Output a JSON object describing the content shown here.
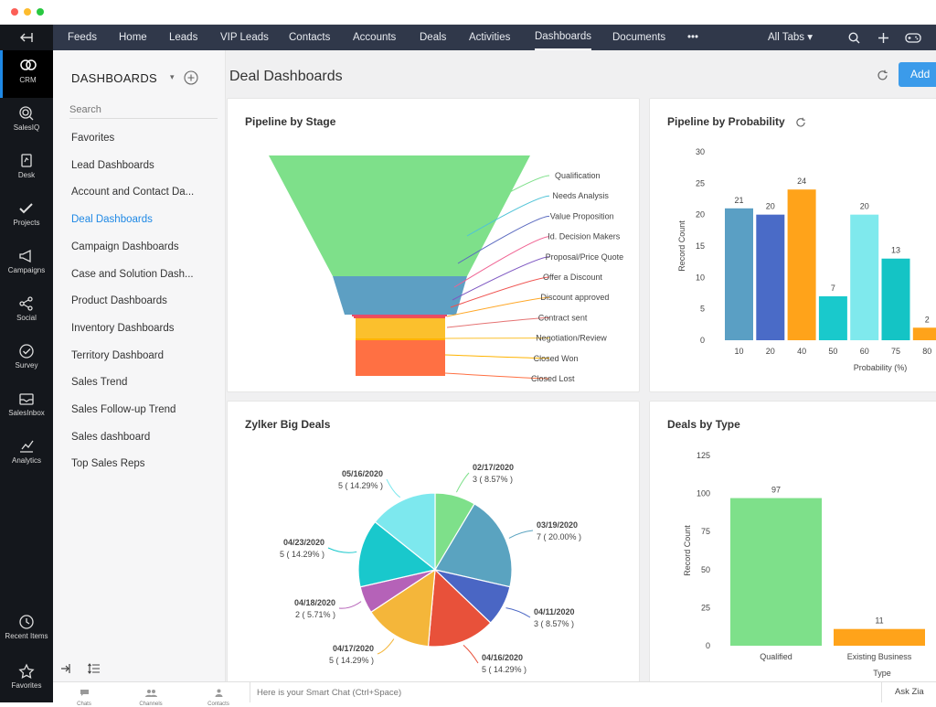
{
  "window": {
    "dots": [
      "#fc5f57",
      "#fdbc2e",
      "#28c840"
    ]
  },
  "topnav": {
    "tabs": [
      "Feeds",
      "Home",
      "Leads",
      "VIP Leads",
      "Contacts",
      "Accounts",
      "Deals",
      "Activities",
      "Dashboards",
      "Documents",
      "•••"
    ],
    "active": "Dashboards",
    "all_tabs": "All Tabs ▾"
  },
  "rail": {
    "items": [
      {
        "label": "CRM",
        "icon": "crm-icon"
      },
      {
        "label": "SalesIQ",
        "icon": "salesiq-icon"
      },
      {
        "label": "Desk",
        "icon": "desk-icon"
      },
      {
        "label": "Projects",
        "icon": "projects-icon"
      },
      {
        "label": "Campaigns",
        "icon": "campaigns-icon"
      },
      {
        "label": "Social",
        "icon": "social-icon"
      },
      {
        "label": "Survey",
        "icon": "survey-icon"
      },
      {
        "label": "SalesInbox",
        "icon": "salesinbox-icon"
      },
      {
        "label": "Analytics",
        "icon": "analytics-icon"
      }
    ],
    "bottom": [
      {
        "label": "Recent Items",
        "icon": "clock-icon"
      },
      {
        "label": "Favorites",
        "icon": "star-icon"
      }
    ]
  },
  "sidebar": {
    "title": "DASHBOARDS",
    "search_placeholder": "Search",
    "items": [
      "Favorites",
      "Lead Dashboards",
      "Account and Contact Da...",
      "Deal Dashboards",
      "Campaign Dashboards",
      "Case and Solution Dash...",
      "Product Dashboards",
      "Inventory Dashboards",
      "Territory Dashboard",
      "Sales Trend",
      "Sales Follow-up Trend",
      "Sales dashboard",
      "Top Sales Reps"
    ],
    "active": "Deal Dashboards"
  },
  "page": {
    "title": "Deal Dashboards",
    "add_button": "Add"
  },
  "bottombar": {
    "items": [
      "Chats",
      "Channels",
      "Contacts"
    ],
    "smart_chat_placeholder": "Here is your Smart Chat (Ctrl+Space)",
    "ask_zia": "Ask Zia"
  },
  "chart_data": [
    {
      "type": "funnel",
      "title": "Pipeline by Stage",
      "categories": [
        "Qualification",
        "Needs Analysis",
        "Value Proposition",
        "Id. Decision Makers",
        "Proposal/Price Quote",
        "Offer a Discount",
        "Discount approved",
        "Contract sent",
        "Negotiation/Review",
        "Closed Won",
        "Closed Lost"
      ],
      "colors": [
        "#7ee08a",
        "#4fc3d7",
        "#5c6bc0",
        "#f06292",
        "#7e57c2",
        "#ef5350",
        "#ffa726",
        "#e57373",
        "#fbc02d",
        "#ffb300",
        "#ff7043"
      ]
    },
    {
      "type": "bar",
      "title": "Pipeline by Probability",
      "xlabel": "Probability (%)",
      "ylabel": "Record Count",
      "categories": [
        "10",
        "20",
        "40",
        "50",
        "60",
        "75",
        "80"
      ],
      "values": [
        21,
        20,
        24,
        7,
        20,
        13,
        2
      ],
      "colors": [
        "#5a9fc4",
        "#4a6bc7",
        "#ffa31a",
        "#19c9cc",
        "#7fe9ed",
        "#14c4c5",
        "#ffa31a"
      ],
      "ylim": [
        0,
        30
      ],
      "yticks": [
        0,
        5,
        10,
        15,
        20,
        25,
        30
      ]
    },
    {
      "type": "pie",
      "title": "Zylker Big Deals",
      "slices": [
        {
          "date": "02/17/2020",
          "label": "3 ( 8.57% )",
          "value": 8.57,
          "color": "#7ee08a"
        },
        {
          "date": "03/19/2020",
          "label": "7 ( 20.00% )",
          "value": 20.0,
          "color": "#5aa3c0"
        },
        {
          "date": "04/11/2020",
          "label": "3 ( 8.57% )",
          "value": 8.57,
          "color": "#4a66c4"
        },
        {
          "date": "04/16/2020",
          "label": "5 ( 14.29% )",
          "value": 14.29,
          "color": "#e8513a"
        },
        {
          "date": "04/17/2020",
          "label": "5 ( 14.29% )",
          "value": 14.29,
          "color": "#f4b63a"
        },
        {
          "date": "04/18/2020",
          "label": "2 ( 5.71% )",
          "value": 5.71,
          "color": "#b562b8"
        },
        {
          "date": "04/23/2020",
          "label": "5 ( 14.29% )",
          "value": 14.29,
          "color": "#19c8cc"
        },
        {
          "date": "05/16/2020",
          "label": "5 ( 14.29% )",
          "value": 14.29,
          "color": "#7de8ee"
        }
      ]
    },
    {
      "type": "bar",
      "title": "Deals by Type",
      "xlabel": "Type",
      "ylabel": "Record Count",
      "categories": [
        "Qualified",
        "Existing Business"
      ],
      "values": [
        97,
        11
      ],
      "colors": [
        "#7ee08a",
        "#ffa31a"
      ],
      "ylim": [
        0,
        125
      ],
      "yticks": [
        0,
        25,
        50,
        75,
        100,
        125
      ]
    }
  ]
}
